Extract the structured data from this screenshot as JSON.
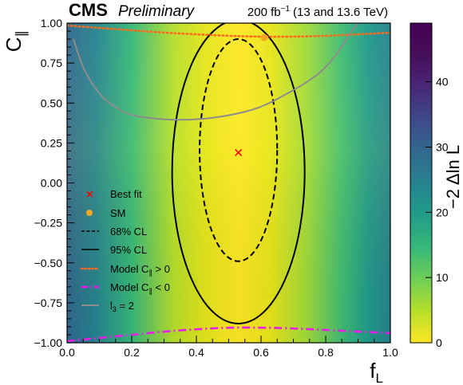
{
  "chart_data": {
    "type": "heatmap",
    "header": {
      "experiment": "CMS",
      "status": "Preliminary",
      "lumi_value": "200 fb",
      "lumi_exp": "−1",
      "energy": "(13 and 13.6 TeV)"
    },
    "xlabel": {
      "main": "f",
      "sub": "L"
    },
    "ylabel": {
      "main": "C",
      "sub": "∥"
    },
    "colorbar_label": "−2 Δln L",
    "xlim": [
      0.0,
      1.0
    ],
    "ylim": [
      -1.0,
      1.0
    ],
    "zlim": [
      0,
      49
    ],
    "x_ticks": [
      0.0,
      0.2,
      0.4,
      0.6,
      0.8,
      1.0
    ],
    "x_tick_labels": [
      "0.0",
      "0.2",
      "0.4",
      "0.6",
      "0.8",
      "1.0"
    ],
    "y_ticks": [
      -1.0,
      -0.75,
      -0.5,
      -0.25,
      0.0,
      0.25,
      0.5,
      0.75,
      1.0
    ],
    "y_tick_labels": [
      "−1.00",
      "−0.75",
      "−0.50",
      "−0.25",
      "0.00",
      "0.25",
      "0.50",
      "0.75",
      "1.00"
    ],
    "z_ticks": [
      0,
      10,
      20,
      30,
      40
    ],
    "z_tick_labels": [
      "0",
      "10",
      "20",
      "30",
      "40"
    ],
    "colormap": "viridis-reversed",
    "best_fit": {
      "x": 0.53,
      "y": 0.19,
      "label": "Best fit",
      "color": "#ff0000"
    },
    "sm_point": {
      "x": 0.61,
      "y": 0.91,
      "label": "SM",
      "color": "#f5a623"
    },
    "contours": [
      {
        "name": "68% CL",
        "center_x": 0.53,
        "center_y": 0.205,
        "half_width_x": 0.12,
        "half_height_y": 0.695,
        "style": "dashed",
        "color": "#000000"
      },
      {
        "name": "95% CL",
        "center_x": 0.53,
        "center_y": 0.07,
        "half_width_x": 0.205,
        "half_height_y": 0.95,
        "style": "solid",
        "color": "#000000"
      }
    ],
    "curves": [
      {
        "name": "Model C∥ > 0",
        "label_main": "Model C",
        "label_sub": "∥",
        "label_tail": " > 0",
        "style": "dotted",
        "color": "#ff6a1a",
        "x": [
          0.0,
          0.1,
          0.2,
          0.3,
          0.4,
          0.5,
          0.6,
          0.7,
          0.8,
          0.9,
          1.0
        ],
        "y": [
          0.985,
          0.97,
          0.955,
          0.94,
          0.93,
          0.92,
          0.915,
          0.915,
          0.92,
          0.93,
          0.94
        ]
      },
      {
        "name": "Model C∥ < 0",
        "label_main": "Model C",
        "label_sub": "∥",
        "label_tail": " < 0",
        "style": "dashdot",
        "color": "#e81ee8",
        "x": [
          0.0,
          0.1,
          0.2,
          0.3,
          0.4,
          0.5,
          0.6,
          0.7,
          0.8,
          0.9,
          1.0
        ],
        "y": [
          -0.99,
          -0.97,
          -0.95,
          -0.93,
          -0.915,
          -0.905,
          -0.905,
          -0.91,
          -0.92,
          -0.93,
          -0.94
        ]
      },
      {
        "name": "l3 = 2",
        "label_main": "l",
        "label_sub": "3",
        "label_tail": " = 2",
        "style": "solid",
        "color": "#8c8c8c",
        "x": [
          0.02,
          0.05,
          0.1,
          0.15,
          0.2,
          0.3,
          0.4,
          0.5,
          0.6,
          0.7,
          0.75,
          0.8,
          0.85,
          0.88,
          0.9
        ],
        "y": [
          0.9,
          0.71,
          0.55,
          0.47,
          0.42,
          0.395,
          0.395,
          0.42,
          0.47,
          0.58,
          0.64,
          0.72,
          0.85,
          0.95,
          1.0
        ]
      }
    ],
    "legend": {
      "placement": "left-center",
      "best_fit_label": "Best fit",
      "sm_label": "SM",
      "cl68_label": "68% CL",
      "cl95_label": "95% CL"
    }
  }
}
